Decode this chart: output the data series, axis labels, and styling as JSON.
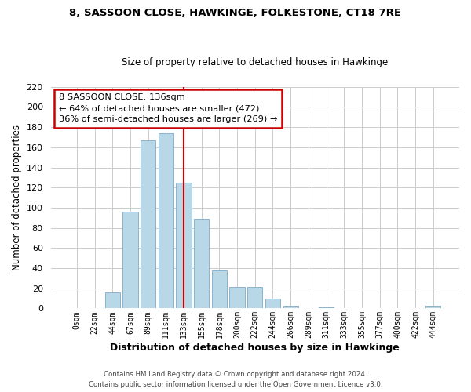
{
  "title": "8, SASSOON CLOSE, HAWKINGE, FOLKESTONE, CT18 7RE",
  "subtitle": "Size of property relative to detached houses in Hawkinge",
  "xlabel": "Distribution of detached houses by size in Hawkinge",
  "ylabel": "Number of detached properties",
  "bar_labels": [
    "0sqm",
    "22sqm",
    "44sqm",
    "67sqm",
    "89sqm",
    "111sqm",
    "133sqm",
    "155sqm",
    "178sqm",
    "200sqm",
    "222sqm",
    "244sqm",
    "266sqm",
    "289sqm",
    "311sqm",
    "333sqm",
    "355sqm",
    "377sqm",
    "400sqm",
    "422sqm",
    "444sqm"
  ],
  "bar_heights": [
    0,
    0,
    16,
    96,
    167,
    174,
    125,
    89,
    38,
    21,
    21,
    10,
    3,
    0,
    1,
    0,
    0,
    0,
    0,
    0,
    3
  ],
  "bar_color": "#b8d8e8",
  "bar_edge_color": "#8ab4cc",
  "highlight_index": 6,
  "annotation_title": "8 SASSOON CLOSE: 136sqm",
  "annotation_line1": "← 64% of detached houses are smaller (472)",
  "annotation_line2": "36% of semi-detached houses are larger (269) →",
  "annotation_box_color": "#ffffff",
  "annotation_box_edge": "#cc0000",
  "vline_color": "#cc0000",
  "ylim": [
    0,
    220
  ],
  "yticks": [
    0,
    20,
    40,
    60,
    80,
    100,
    120,
    140,
    160,
    180,
    200,
    220
  ],
  "footer_line1": "Contains HM Land Registry data © Crown copyright and database right 2024.",
  "footer_line2": "Contains public sector information licensed under the Open Government Licence v3.0.",
  "bg_color": "#ffffff",
  "grid_color": "#cccccc"
}
